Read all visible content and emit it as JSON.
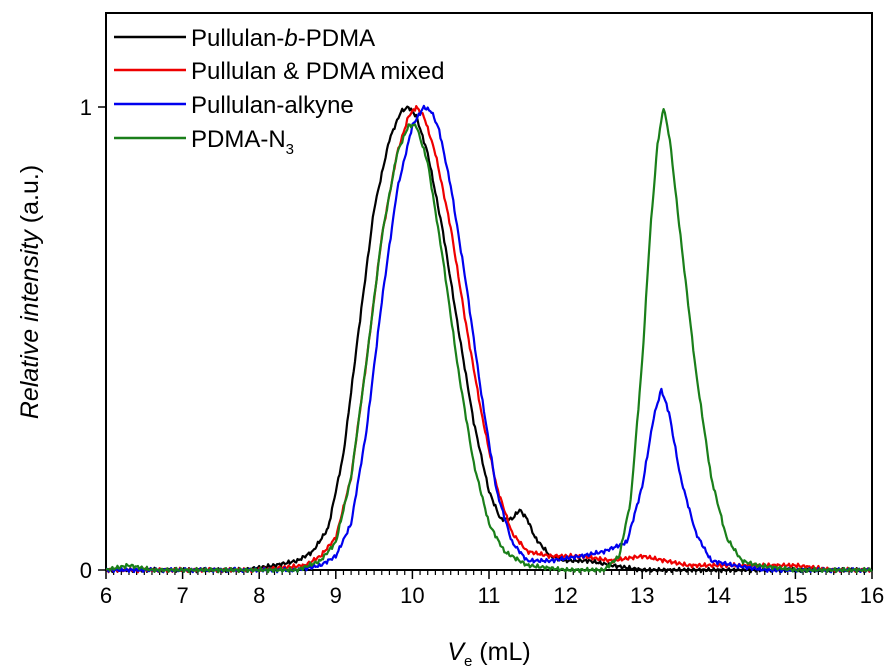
{
  "chart_data": {
    "type": "line",
    "xlabel_main": "V",
    "xlabel_sub": "e",
    "xlabel_unit": " (mL)",
    "ylabel_italic": "Relative intensity",
    "ylabel_unit": " (a.u.)",
    "xlim": [
      6,
      16
    ],
    "ylim": [
      0,
      1.2
    ],
    "xticks": [
      "6",
      "7",
      "8",
      "9",
      "10",
      "11",
      "12",
      "13",
      "14",
      "15",
      "16"
    ],
    "yticks": [
      "0",
      "1"
    ],
    "grid": false,
    "legend_position": "top-left",
    "legend": [
      {
        "prefix": "Pullulan-",
        "italic": "b",
        "suffix": "-PDMA",
        "sub": ""
      },
      {
        "prefix": "Pullulan & PDMA mixed",
        "italic": "",
        "suffix": "",
        "sub": ""
      },
      {
        "prefix": "Pullulan-alkyne",
        "italic": "",
        "suffix": "",
        "sub": ""
      },
      {
        "prefix": "PDMA-N",
        "italic": "",
        "suffix": "",
        "sub": "3"
      }
    ],
    "series": [
      {
        "name": "Pullulan-b-PDMA",
        "color": "#000000",
        "x": [
          6.0,
          7.0,
          7.8,
          8.2,
          8.5,
          8.7,
          8.9,
          9.1,
          9.3,
          9.5,
          9.7,
          9.85,
          9.95,
          10.05,
          10.2,
          10.4,
          10.6,
          10.8,
          11.0,
          11.15,
          11.3,
          11.4,
          11.5,
          11.6,
          11.8,
          12.0,
          12.3,
          12.6,
          13.0,
          16.0
        ],
        "y": [
          0.0,
          0.0,
          0.0,
          0.01,
          0.02,
          0.04,
          0.09,
          0.25,
          0.52,
          0.78,
          0.93,
          0.99,
          1.0,
          0.98,
          0.9,
          0.73,
          0.52,
          0.32,
          0.17,
          0.11,
          0.11,
          0.13,
          0.11,
          0.07,
          0.03,
          0.02,
          0.02,
          0.01,
          0.0,
          0.0
        ]
      },
      {
        "name": "Pullulan & PDMA mixed",
        "color": "#ee0000",
        "x": [
          6.0,
          8.0,
          8.6,
          8.8,
          9.0,
          9.2,
          9.4,
          9.6,
          9.8,
          9.95,
          10.05,
          10.15,
          10.3,
          10.5,
          10.7,
          10.9,
          11.1,
          11.3,
          11.5,
          11.8,
          12.2,
          12.6,
          13.0,
          13.3,
          13.6,
          14.0,
          14.5,
          15.0,
          15.5,
          16.0
        ],
        "y": [
          0.0,
          0.0,
          0.01,
          0.03,
          0.07,
          0.2,
          0.45,
          0.72,
          0.9,
          0.98,
          1.0,
          0.98,
          0.9,
          0.74,
          0.53,
          0.34,
          0.18,
          0.08,
          0.04,
          0.03,
          0.03,
          0.02,
          0.03,
          0.02,
          0.01,
          0.01,
          0.01,
          0.01,
          0.0,
          0.0
        ]
      },
      {
        "name": "Pullulan-alkyne",
        "color": "#0000ee",
        "x": [
          6.0,
          8.5,
          8.8,
          9.0,
          9.2,
          9.4,
          9.6,
          9.8,
          10.0,
          10.15,
          10.25,
          10.35,
          10.5,
          10.7,
          10.9,
          11.1,
          11.3,
          11.5,
          11.8,
          12.2,
          12.5,
          12.8,
          13.0,
          13.15,
          13.25,
          13.35,
          13.5,
          13.7,
          13.9,
          14.2,
          14.6,
          16.0
        ],
        "y": [
          0.0,
          0.0,
          0.01,
          0.03,
          0.1,
          0.3,
          0.58,
          0.82,
          0.96,
          1.0,
          0.99,
          0.95,
          0.83,
          0.62,
          0.38,
          0.17,
          0.06,
          0.02,
          0.02,
          0.03,
          0.04,
          0.06,
          0.18,
          0.33,
          0.39,
          0.34,
          0.2,
          0.08,
          0.02,
          0.01,
          0.0,
          0.0
        ]
      },
      {
        "name": "PDMA-N3",
        "color": "#1a7f1a",
        "x": [
          6.0,
          6.3,
          6.6,
          7.0,
          8.5,
          8.8,
          9.0,
          9.2,
          9.4,
          9.6,
          9.8,
          9.95,
          10.05,
          10.2,
          10.4,
          10.6,
          10.8,
          11.0,
          11.2,
          11.5,
          12.0,
          12.5,
          12.7,
          12.85,
          13.0,
          13.1,
          13.2,
          13.28,
          13.36,
          13.5,
          13.7,
          13.9,
          14.1,
          14.3,
          14.5,
          15.0,
          16.0
        ],
        "y": [
          0.0,
          0.01,
          0.0,
          0.0,
          0.0,
          0.02,
          0.06,
          0.2,
          0.45,
          0.72,
          0.9,
          0.96,
          0.96,
          0.88,
          0.67,
          0.43,
          0.23,
          0.1,
          0.04,
          0.01,
          0.0,
          0.0,
          0.03,
          0.15,
          0.45,
          0.72,
          0.92,
          1.0,
          0.93,
          0.72,
          0.43,
          0.2,
          0.07,
          0.02,
          0.01,
          0.0,
          0.0
        ]
      }
    ]
  }
}
